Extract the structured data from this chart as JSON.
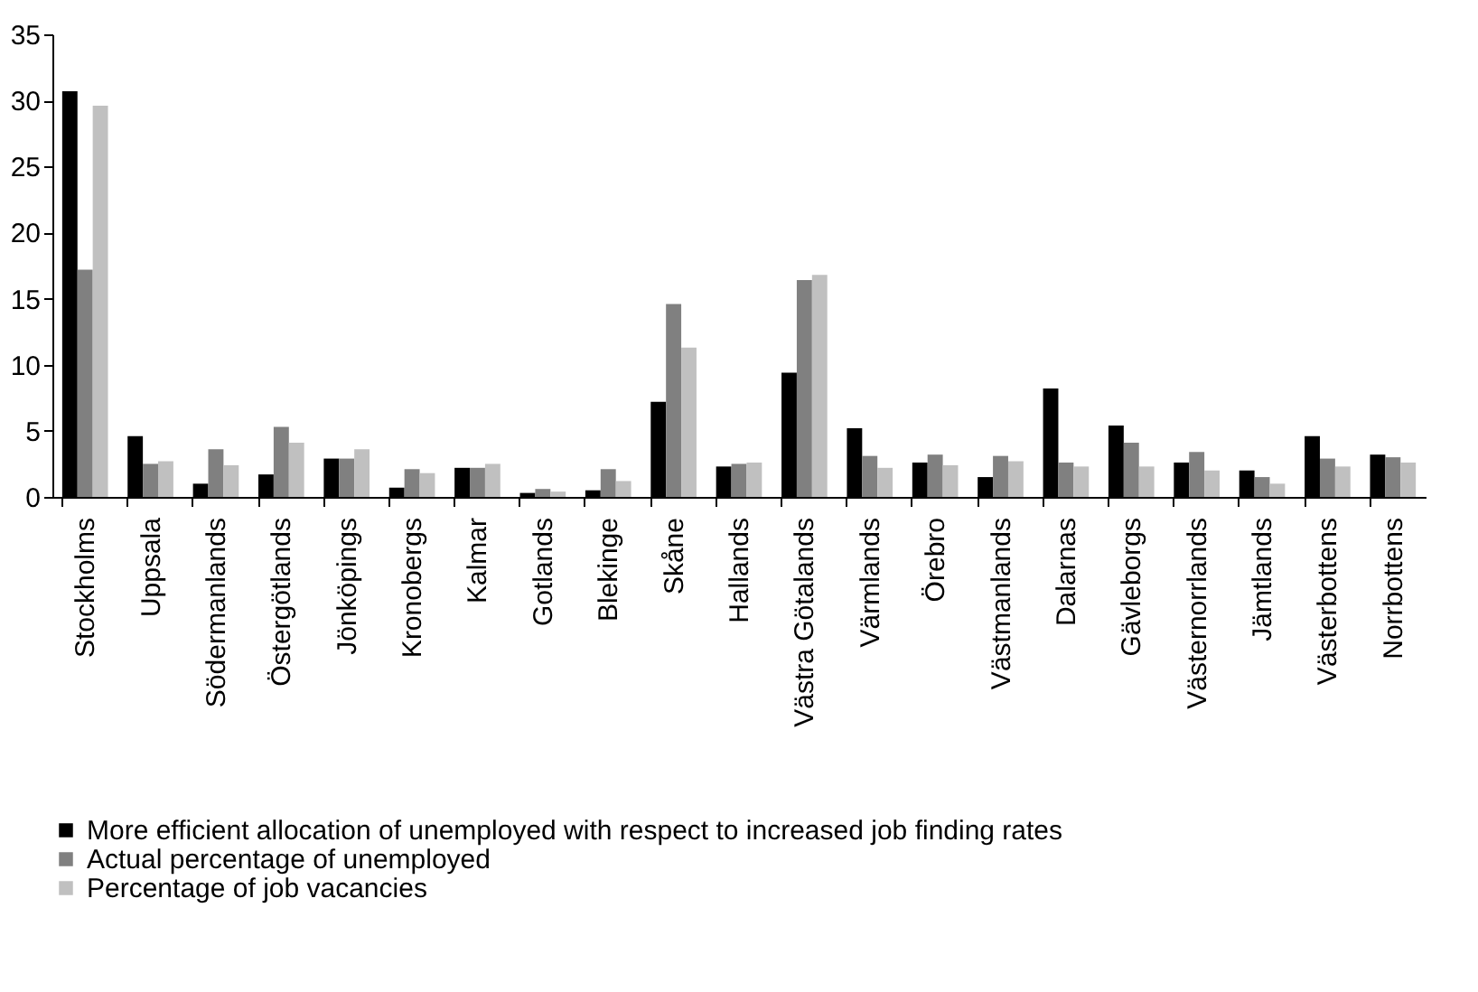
{
  "chart_data": {
    "type": "bar",
    "categories": [
      "Stockholms",
      "Uppsala",
      "Södermanlands",
      "Östergötlands",
      "Jönköpings",
      "Kronobergs",
      "Kalmar",
      "Gotlands",
      "Blekinge",
      "Skåne",
      "Hallands",
      "Västra Götalands",
      "Värmlands",
      "Örebro",
      "Västmanlands",
      "Dalarnas",
      "Gävleborgs",
      "Västernorrlands",
      "Jämtlands",
      "Västerbottens",
      "Norrbottens"
    ],
    "series": [
      {
        "name": "More efficient allocation of unemployed with respect to increased job finding rates",
        "color": "#000000",
        "values": [
          30.7,
          4.6,
          1.0,
          1.7,
          2.9,
          0.7,
          2.2,
          0.3,
          0.5,
          7.2,
          2.3,
          9.4,
          5.2,
          2.6,
          1.5,
          8.2,
          5.4,
          2.6,
          2.0,
          4.6,
          3.2
        ]
      },
      {
        "name": "Actual percentage of unemployed",
        "color": "#808080",
        "values": [
          17.2,
          2.5,
          3.6,
          5.3,
          2.9,
          2.1,
          2.2,
          0.6,
          2.1,
          14.6,
          2.5,
          16.4,
          3.1,
          3.2,
          3.1,
          2.6,
          4.1,
          3.4,
          1.5,
          2.9,
          3.0
        ]
      },
      {
        "name": "Percentage of job vacancies",
        "color": "#c0c0c0",
        "values": [
          29.6,
          2.7,
          2.4,
          4.1,
          3.6,
          1.8,
          2.5,
          0.4,
          1.2,
          11.3,
          2.6,
          16.8,
          2.2,
          2.4,
          2.7,
          2.3,
          2.3,
          2.0,
          1.0,
          2.3,
          2.6
        ]
      }
    ],
    "ylim": [
      0,
      35
    ],
    "yticks": [
      0,
      5,
      10,
      15,
      20,
      25,
      30,
      35
    ],
    "grid": false,
    "legend": "bottom left"
  }
}
